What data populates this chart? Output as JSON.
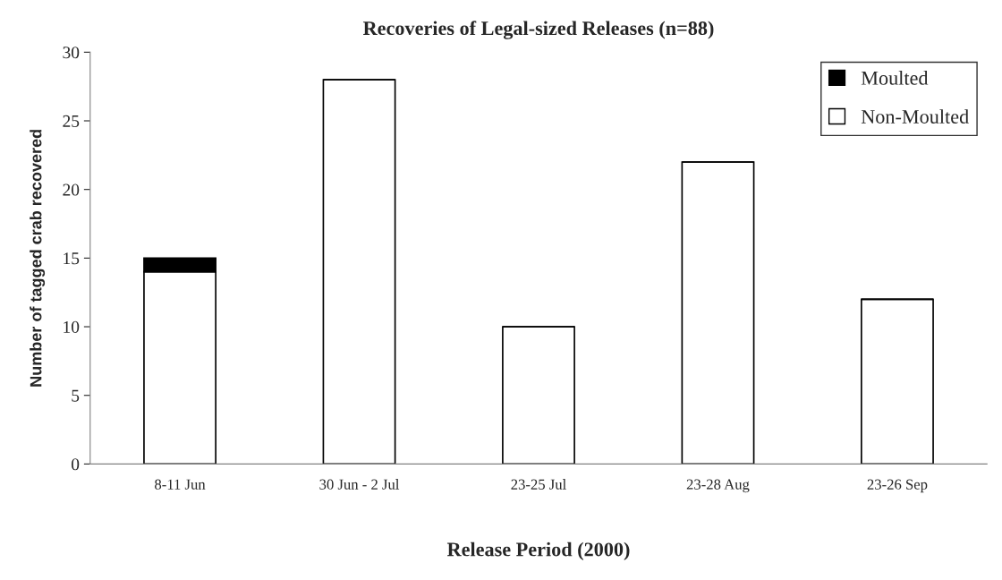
{
  "chart_data": {
    "type": "bar",
    "title": "Recoveries of Legal-sized Releases (n=88)",
    "xlabel": "Release Period (2000)",
    "ylabel": "Number of tagged crab recovered",
    "categories": [
      "8-11 Jun",
      "30 Jun - 2 Jul",
      "23-25 Jul",
      "23-28 Aug",
      "23-26 Sep"
    ],
    "stacked": true,
    "series": [
      {
        "name": "Non-Moulted",
        "color": "#ffffff",
        "values": [
          14,
          28,
          10,
          22,
          12
        ]
      },
      {
        "name": "Moulted",
        "color": "#000000",
        "values": [
          1,
          0,
          0,
          0,
          0
        ]
      }
    ],
    "ylim": [
      0,
      30
    ],
    "yticks": [
      0,
      5,
      10,
      15,
      20,
      25,
      30
    ],
    "grid": false,
    "legend": "top right"
  }
}
